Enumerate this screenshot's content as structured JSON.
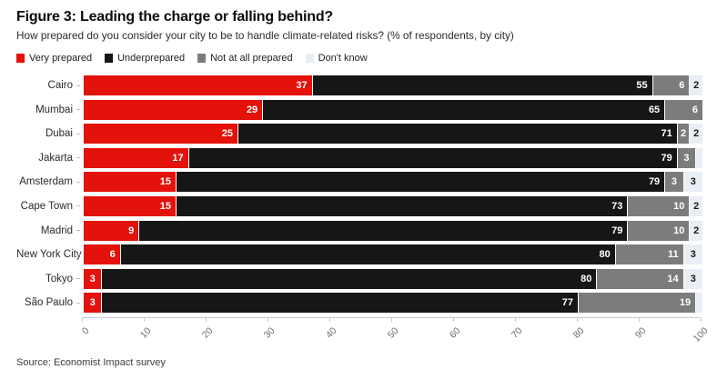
{
  "figure": {
    "title": "Figure 3: Leading the charge or falling behind?",
    "subtitle": "How prepared do you consider your city to be to handle climate-related risks? (% of respondents, by city)",
    "source": "Source: Economist Impact survey"
  },
  "chart_data": {
    "type": "bar",
    "orientation": "horizontal",
    "stacked": true,
    "unit": "%",
    "title": "Figure 3: Leading the charge or falling behind?",
    "subtitle": "How prepared do you consider your city to be to handle climate-related risks? (% of respondents, by city)",
    "xlabel": "",
    "ylabel": "",
    "xlim": [
      0,
      100
    ],
    "xticks": [
      0,
      10,
      20,
      30,
      40,
      50,
      60,
      70,
      80,
      90,
      100
    ],
    "grid": false,
    "legend_position": "top-left",
    "categories": [
      "Cairo",
      "Mumbai",
      "Dubai",
      "Jakarta",
      "Amsterdam",
      "Cape Town",
      "Madrid",
      "New York City",
      "Tokyo",
      "São Paulo"
    ],
    "series": [
      {
        "name": "Very prepared",
        "color": "#e3120b",
        "label_color": "#ffffff",
        "values": [
          37,
          29,
          25,
          17,
          15,
          15,
          9,
          6,
          3,
          3
        ]
      },
      {
        "name": "Underprepared",
        "color": "#161616",
        "label_color": "#ffffff",
        "values": [
          55,
          65,
          71,
          79,
          79,
          73,
          79,
          80,
          80,
          77
        ]
      },
      {
        "name": "Not at all prepared",
        "color": "#7c7c7c",
        "label_color": "#ffffff",
        "values": [
          6,
          6,
          2,
          3,
          3,
          10,
          10,
          11,
          14,
          19
        ]
      },
      {
        "name": "Don't know",
        "color": "#e8eef3",
        "label_color": "#1a1a1a",
        "values": [
          2,
          0,
          2,
          1,
          3,
          2,
          2,
          3,
          3,
          1
        ]
      }
    ],
    "label_min_visible": 2
  }
}
